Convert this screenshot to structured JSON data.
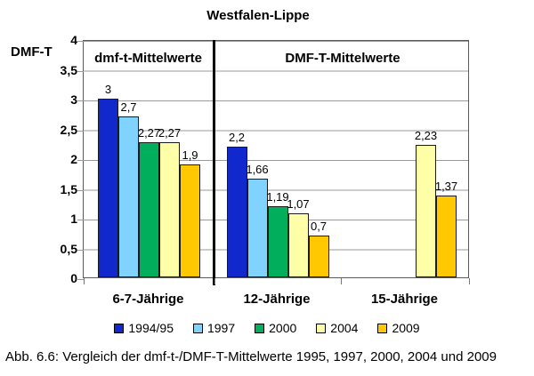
{
  "caption": "Abb. 6.6: Vergleich der dmf-t-/DMF-T-Mittelwerte 1995, 1997, 2000, 2004 und 2009",
  "chart_data": {
    "type": "bar",
    "title": "Westfalen-Lippe",
    "ylabel": "DMF-T",
    "xlabel": "",
    "ylim": [
      0,
      4
    ],
    "ytick_step": 0.5,
    "grid": true,
    "legend_position": "bottom",
    "yticks": [
      "4",
      "3,5",
      "3",
      "2,5",
      "2",
      "1,5",
      "1",
      "0,5",
      "0"
    ],
    "panel_headers": [
      "dmf-t-Mittelwerte",
      "DMF-T-Mittelwerte"
    ],
    "categories": [
      "6-7-Jährige",
      "12-Jährige",
      "15-Jährige"
    ],
    "series": [
      {
        "name": "1994/95",
        "color": "#1128cd",
        "values": [
          3,
          2.2,
          null
        ],
        "labels": [
          "3",
          "2,2",
          null
        ]
      },
      {
        "name": "1997",
        "color": "#80d2ff",
        "values": [
          2.7,
          1.66,
          null
        ],
        "labels": [
          "2,7",
          "1,66",
          null
        ]
      },
      {
        "name": "2000",
        "color": "#00ae5b",
        "values": [
          2.27,
          1.19,
          null
        ],
        "labels": [
          "2,27",
          "1,19",
          null
        ]
      },
      {
        "name": "2004",
        "color": "#ffffa8",
        "values": [
          2.27,
          1.07,
          2.23
        ],
        "labels": [
          "2,27",
          "1,07",
          "2,23"
        ]
      },
      {
        "name": "2009",
        "color": "#ffc800",
        "values": [
          1.9,
          0.7,
          1.37
        ],
        "labels": [
          "1,9",
          "0,7",
          "1,37"
        ]
      }
    ]
  }
}
